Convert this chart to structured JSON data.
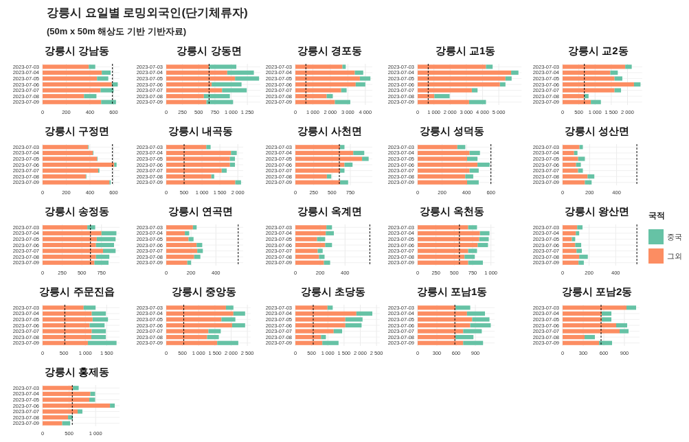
{
  "chart_data": [
    {
      "type": "other",
      "title": "강릉시 요일별 로밍외국인(단기체류자)",
      "subtitle": "(50m x 50m 해상도 기반 기반자료)"
    },
    {
      "type": "bar",
      "title": "강릉시 강남동",
      "orientation": "horizontal",
      "stacked": true,
      "grid": true,
      "categories": [
        "2023-07-03",
        "2023-07-04",
        "2023-07-05",
        "2023-07-06",
        "2023-07-07",
        "2023-07-08",
        "2023-07-09"
      ],
      "series": [
        {
          "color": "#fc8d62",
          "values": [
            390,
            500,
            460,
            585,
            490,
            350,
            495
          ]
        },
        {
          "color": "#66c2a5",
          "values": [
            55,
            75,
            95,
            50,
            110,
            105,
            125
          ]
        }
      ],
      "xlim": [
        0,
        650
      ],
      "xticks": [
        0,
        200,
        400,
        600
      ],
      "ref_lines": [
        {
          "axis": "x",
          "value": 590,
          "line_style": "dashed",
          "color": "#000000"
        }
      ]
    },
    {
      "type": "bar",
      "title": "강릉시 강동면",
      "orientation": "horizontal",
      "stacked": true,
      "grid": true,
      "categories": [
        "2023-07-03",
        "2023-07-04",
        "2023-07-05",
        "2023-07-06",
        "2023-07-07",
        "2023-07-08",
        "2023-07-09"
      ],
      "series": [
        {
          "color": "#fc8d62",
          "values": [
            660,
            940,
            1060,
            700,
            860,
            580,
            620
          ]
        },
        {
          "color": "#66c2a5",
          "values": [
            420,
            410,
            370,
            460,
            380,
            400,
            410
          ]
        }
      ],
      "xlim": [
        0,
        1450
      ],
      "xticks": [
        0,
        250,
        500,
        750,
        {
          "value": 1000,
          "label": "1 000"
        },
        {
          "value": 1250,
          "label": "1 250"
        }
      ],
      "ref_lines": [
        {
          "axis": "x",
          "value": 660,
          "line_style": "dashed",
          "color": "#000000"
        }
      ]
    },
    {
      "type": "bar",
      "title": "강릉시 경포동",
      "orientation": "horizontal",
      "stacked": true,
      "grid": true,
      "categories": [
        "2023-07-03",
        "2023-07-04",
        "2023-07-05",
        "2023-07-06",
        "2023-07-07",
        "2023-07-08",
        "2023-07-09"
      ],
      "series": [
        {
          "color": "#fc8d62",
          "values": [
            2690,
            3400,
            3690,
            3450,
            2620,
            1790,
            2260
          ]
        },
        {
          "color": "#66c2a5",
          "values": [
            190,
            480,
            600,
            550,
            310,
            350,
            880
          ]
        }
      ],
      "xlim": [
        0,
        4400
      ],
      "xticks": [
        0,
        {
          "value": 1000,
          "label": "1 000"
        },
        {
          "value": 2000,
          "label": "2 000"
        },
        {
          "value": 3000,
          "label": "3 000"
        },
        {
          "value": 4000,
          "label": "4 000"
        }
      ],
      "ref_lines": [
        {
          "axis": "x",
          "value": 600,
          "line_style": "dashed",
          "color": "#000000"
        }
      ]
    },
    {
      "type": "bar",
      "title": "강릉시 교1동",
      "orientation": "horizontal",
      "stacked": true,
      "grid": true,
      "categories": [
        "2023-07-03",
        "2023-07-04",
        "2023-07-05",
        "2023-07-06",
        "2023-07-07",
        "2023-07-08",
        "2023-07-09"
      ],
      "series": [
        {
          "color": "#fc8d62",
          "values": [
            4210,
            5760,
            5410,
            5070,
            3340,
            1030,
            3170
          ]
        },
        {
          "color": "#66c2a5",
          "values": [
            410,
            450,
            380,
            340,
            350,
            940,
            1040
          ]
        }
      ],
      "xlim": [
        0,
        6400
      ],
      "xticks": [
        0,
        {
          "value": 1000,
          "label": "1 000"
        },
        {
          "value": 2000,
          "label": "2 000"
        },
        {
          "value": 3000,
          "label": "3 000"
        },
        {
          "value": 4000,
          "label": "4 000"
        },
        {
          "value": 5000,
          "label": "5 000"
        }
      ],
      "ref_lines": [
        {
          "axis": "x",
          "value": 650,
          "line_style": "dashed",
          "color": "#000000"
        }
      ]
    },
    {
      "type": "bar",
      "title": "강릉시 교2동",
      "orientation": "horizontal",
      "stacked": true,
      "grid": true,
      "categories": [
        "2023-07-03",
        "2023-07-04",
        "2023-07-05",
        "2023-07-06",
        "2023-07-07",
        "2023-07-08",
        "2023-07-09"
      ],
      "series": [
        {
          "color": "#fc8d62",
          "values": [
            1930,
            1470,
            1600,
            2200,
            1600,
            670,
            870
          ]
        },
        {
          "color": "#66c2a5",
          "values": [
            200,
            230,
            240,
            200,
            200,
            130,
            310
          ]
        }
      ],
      "xlim": [
        0,
        2450
      ],
      "xticks": [
        0,
        500,
        {
          "value": 1000,
          "label": "1 000"
        },
        {
          "value": 1500,
          "label": "1 500"
        },
        {
          "value": 2000,
          "label": "2 000"
        }
      ],
      "ref_lines": [
        {
          "axis": "x",
          "value": 670,
          "line_style": "dashed",
          "color": "#000000"
        }
      ]
    },
    {
      "type": "bar",
      "title": "강릉시 구정면",
      "orientation": "horizontal",
      "stacked": true,
      "grid": true,
      "categories": [
        "2023-07-03",
        "2023-07-04",
        "2023-07-05",
        "2023-07-06",
        "2023-07-07",
        "2023-07-08",
        "2023-07-09"
      ],
      "series": [
        {
          "color": "#fc8d62",
          "values": [
            385,
            425,
            460,
            605,
            470,
            365,
            565
          ]
        },
        {
          "color": "#66c2a5",
          "values": [
            5,
            5,
            5,
            20,
            10,
            5,
            10
          ]
        }
      ],
      "xlim": [
        0,
        650
      ],
      "xticks": [
        0,
        200,
        400,
        600
      ],
      "ref_lines": [
        {
          "axis": "x",
          "value": 590,
          "line_style": "dashed",
          "color": "#000000"
        }
      ]
    },
    {
      "type": "bar",
      "title": "강릉시 내곡동",
      "orientation": "horizontal",
      "stacked": true,
      "grid": true,
      "categories": [
        "2023-07-03",
        "2023-07-04",
        "2023-07-05",
        "2023-07-06",
        "2023-07-07",
        "2023-07-08",
        "2023-07-09"
      ],
      "series": [
        {
          "color": "#fc8d62",
          "values": [
            1120,
            1810,
            1780,
            1780,
            1550,
            1260,
            1930
          ]
        },
        {
          "color": "#66c2a5",
          "values": [
            120,
            160,
            140,
            140,
            140,
            80,
            160
          ]
        }
      ],
      "xlim": [
        0,
        2150
      ],
      "xticks": [
        0,
        500,
        {
          "value": 1000,
          "label": "1 000"
        },
        {
          "value": 1500,
          "label": "1 500"
        },
        {
          "value": 2000,
          "label": "2 000"
        }
      ],
      "ref_lines": [
        {
          "axis": "x",
          "value": 500,
          "line_style": "dashed",
          "color": "#000000"
        }
      ]
    },
    {
      "type": "bar",
      "title": "강릉시 사천면",
      "orientation": "horizontal",
      "stacked": true,
      "grid": true,
      "categories": [
        "2023-07-03",
        "2023-07-04",
        "2023-07-05",
        "2023-07-06",
        "2023-07-07",
        "2023-07-08",
        "2023-07-09"
      ],
      "series": [
        {
          "color": "#fc8d62",
          "values": [
            610,
            790,
            910,
            670,
            610,
            430,
            610
          ]
        },
        {
          "color": "#66c2a5",
          "values": [
            60,
            150,
            90,
            110,
            60,
            60,
            110
          ]
        }
      ],
      "xlim": [
        0,
        1050
      ],
      "xticks": [
        0,
        250,
        500,
        750
      ],
      "ref_lines": [
        {
          "axis": "x",
          "value": 600,
          "line_style": "dashed",
          "color": "#000000"
        }
      ]
    },
    {
      "type": "bar",
      "title": "강릉시 성덕동",
      "orientation": "horizontal",
      "stacked": true,
      "grid": true,
      "categories": [
        "2023-07-03",
        "2023-07-04",
        "2023-07-05",
        "2023-07-06",
        "2023-07-07",
        "2023-07-08",
        "2023-07-09"
      ],
      "series": [
        {
          "color": "#fc8d62",
          "values": [
            325,
            425,
            405,
            490,
            425,
            390,
            405
          ]
        },
        {
          "color": "#66c2a5",
          "values": [
            65,
            85,
            85,
            100,
            75,
            65,
            95
          ]
        }
      ],
      "xlim": [
        0,
        630
      ],
      "xticks": [
        0,
        200,
        400,
        600
      ],
      "ref_lines": [
        {
          "axis": "x",
          "value": 600,
          "line_style": "dashed",
          "color": "#000000"
        }
      ]
    },
    {
      "type": "bar",
      "title": "강릉시 성산면",
      "orientation": "horizontal",
      "stacked": true,
      "grid": true,
      "categories": [
        "2023-07-03",
        "2023-07-04",
        "2023-07-05",
        "2023-07-06",
        "2023-07-07",
        "2023-07-08",
        "2023-07-09"
      ],
      "series": [
        {
          "color": "#fc8d62",
          "values": [
            125,
            85,
            115,
            100,
            115,
            185,
            165
          ]
        },
        {
          "color": "#66c2a5",
          "values": [
            25,
            25,
            50,
            35,
            35,
            50,
            50
          ]
        }
      ],
      "xlim": [
        0,
        570
      ],
      "xticks": [
        0,
        200,
        400
      ],
      "ref_lines": [
        {
          "axis": "x",
          "value": 550,
          "line_style": "dashed",
          "color": "#000000"
        }
      ]
    },
    {
      "type": "bar",
      "title": "강릉시 송정동",
      "orientation": "horizontal",
      "stacked": true,
      "grid": true,
      "categories": [
        "2023-07-03",
        "2023-07-04",
        "2023-07-05",
        "2023-07-06",
        "2023-07-07",
        "2023-07-08",
        "2023-07-09"
      ],
      "series": [
        {
          "color": "#fc8d62",
          "values": [
            570,
            750,
            690,
            680,
            770,
            680,
            660
          ]
        },
        {
          "color": "#66c2a5",
          "values": [
            100,
            190,
            240,
            230,
            160,
            170,
            180
          ]
        }
      ],
      "xlim": [
        0,
        980
      ],
      "xticks": [
        0,
        250,
        500,
        750
      ],
      "ref_lines": [
        {
          "axis": "x",
          "value": 610,
          "line_style": "dashed",
          "color": "#000000"
        }
      ]
    },
    {
      "type": "bar",
      "title": "강릉시 연곡면",
      "orientation": "horizontal",
      "stacked": true,
      "grid": true,
      "categories": [
        "2023-07-03",
        "2023-07-04",
        "2023-07-05",
        "2023-07-06",
        "2023-07-07",
        "2023-07-08",
        "2023-07-09"
      ],
      "series": [
        {
          "color": "#fc8d62",
          "values": [
            215,
            150,
            180,
            245,
            250,
            225,
            170
          ]
        },
        {
          "color": "#66c2a5",
          "values": [
            30,
            35,
            40,
            45,
            45,
            50,
            30
          ]
        }
      ],
      "xlim": [
        0,
        620
      ],
      "xticks": [
        0,
        200,
        400
      ],
      "ref_lines": [
        {
          "axis": "x",
          "value": 580,
          "line_style": "dashed",
          "color": "#000000"
        }
      ]
    },
    {
      "type": "bar",
      "title": "강릉시 옥계면",
      "orientation": "horizontal",
      "stacked": true,
      "grid": true,
      "categories": [
        "2023-07-03",
        "2023-07-04",
        "2023-07-05",
        "2023-07-06",
        "2023-07-07",
        "2023-07-08",
        "2023-07-09"
      ],
      "series": [
        {
          "color": "#fc8d62",
          "values": [
            250,
            245,
            175,
            240,
            180,
            190,
            230
          ]
        },
        {
          "color": "#66c2a5",
          "values": [
            45,
            65,
            65,
            55,
            40,
            45,
            50
          ]
        }
      ],
      "xlim": [
        0,
        620
      ],
      "xticks": [
        0,
        200,
        400
      ],
      "ref_lines": [
        {
          "axis": "x",
          "value": 600,
          "line_style": "dashed",
          "color": "#000000"
        }
      ]
    },
    {
      "type": "bar",
      "title": "강릉시 옥천동",
      "orientation": "horizontal",
      "stacked": true,
      "grid": true,
      "categories": [
        "2023-07-03",
        "2023-07-04",
        "2023-07-05",
        "2023-07-06",
        "2023-07-07",
        "2023-07-08",
        "2023-07-09"
      ],
      "series": [
        {
          "color": "#fc8d62",
          "values": [
            690,
            850,
            840,
            820,
            690,
            640,
            690
          ]
        },
        {
          "color": "#66c2a5",
          "values": [
            120,
            130,
            130,
            140,
            120,
            140,
            200
          ]
        }
      ],
      "xlim": [
        0,
        1050
      ],
      "xticks": [
        0,
        250,
        500,
        750,
        {
          "value": 1000,
          "label": "1 000"
        }
      ],
      "ref_lines": [
        {
          "axis": "x",
          "value": 570,
          "line_style": "dashed",
          "color": "#000000"
        }
      ]
    },
    {
      "type": "bar",
      "title": "강릉시 왕산면",
      "orientation": "horizontal",
      "stacked": true,
      "grid": true,
      "legend": "right",
      "legend_title": "국적",
      "categories": [
        "2023-07-03",
        "2023-07-04",
        "2023-07-05",
        "2023-07-06",
        "2023-07-07",
        "2023-07-08",
        "2023-07-09"
      ],
      "series": [
        {
          "name": "그외",
          "color": "#fc8d62",
          "values": [
            110,
            100,
            70,
            95,
            105,
            125,
            120
          ]
        },
        {
          "name": "중국",
          "color": "#66c2a5",
          "values": [
            40,
            25,
            25,
            45,
            40,
            65,
            40
          ]
        }
      ],
      "xlim": [
        0,
        580
      ],
      "xticks": [
        0,
        200,
        400
      ],
      "ref_lines": [
        {
          "axis": "x",
          "value": 560,
          "line_style": "dashed",
          "color": "#000000"
        }
      ]
    },
    {
      "type": "bar",
      "title": "강릉시 주문진읍",
      "orientation": "horizontal",
      "stacked": true,
      "grid": true,
      "categories": [
        "2023-07-03",
        "2023-07-04",
        "2023-07-05",
        "2023-07-06",
        "2023-07-07",
        "2023-07-08",
        "2023-07-09"
      ],
      "series": [
        {
          "color": "#fc8d62",
          "values": [
            960,
            1150,
            1170,
            1100,
            1150,
            1140,
            1060
          ]
        },
        {
          "color": "#66c2a5",
          "values": [
            280,
            330,
            360,
            350,
            330,
            340,
            670
          ]
        }
      ],
      "xlim": [
        0,
        1800
      ],
      "xticks": [
        0,
        500,
        {
          "value": 1000,
          "label": "1 000"
        },
        {
          "value": 1500,
          "label": "1 500"
        }
      ],
      "ref_lines": [
        {
          "axis": "x",
          "value": 520,
          "line_style": "dashed",
          "color": "#000000"
        }
      ]
    },
    {
      "type": "bar",
      "title": "강릉시 중앙동",
      "orientation": "horizontal",
      "stacked": true,
      "grid": true,
      "categories": [
        "2023-07-03",
        "2023-07-04",
        "2023-07-05",
        "2023-07-06",
        "2023-07-07",
        "2023-07-08",
        "2023-07-09"
      ],
      "series": [
        {
          "color": "#fc8d62",
          "values": [
            1840,
            2070,
            1700,
            2030,
            1300,
            1260,
            1570
          ]
        },
        {
          "color": "#66c2a5",
          "values": [
            230,
            360,
            430,
            400,
            380,
            360,
            650
          ]
        }
      ],
      "xlim": [
        0,
        2600
      ],
      "xticks": [
        0,
        500,
        {
          "value": 1000,
          "label": "1 000"
        },
        {
          "value": 1500,
          "label": "1 500"
        },
        {
          "value": 2000,
          "label": "2 000"
        },
        {
          "value": 2500,
          "label": "2 500"
        }
      ],
      "ref_lines": [
        {
          "axis": "x",
          "value": 540,
          "line_style": "dashed",
          "color": "#000000"
        }
      ]
    },
    {
      "type": "bar",
      "title": "강릉시 초당동",
      "orientation": "horizontal",
      "stacked": true,
      "grid": true,
      "categories": [
        "2023-07-03",
        "2023-07-04",
        "2023-07-05",
        "2023-07-06",
        "2023-07-07",
        "2023-07-08",
        "2023-07-09"
      ],
      "series": [
        {
          "color": "#fc8d62",
          "values": [
            990,
            1880,
            1540,
            1540,
            1180,
            790,
            830
          ]
        },
        {
          "color": "#66c2a5",
          "values": [
            160,
            490,
            530,
            500,
            260,
            150,
            500
          ]
        }
      ],
      "xlim": [
        0,
        2600
      ],
      "xticks": [
        0,
        500,
        {
          "value": 1000,
          "label": "1 000"
        },
        {
          "value": 1500,
          "label": "1 500"
        },
        {
          "value": 2000,
          "label": "2 000"
        },
        {
          "value": 2500,
          "label": "2 500"
        }
      ],
      "ref_lines": [
        {
          "axis": "x",
          "value": 550,
          "line_style": "dashed",
          "color": "#000000"
        }
      ]
    },
    {
      "type": "bar",
      "title": "강릉시 포남1동",
      "orientation": "horizontal",
      "stacked": true,
      "grid": true,
      "categories": [
        "2023-07-03",
        "2023-07-04",
        "2023-07-05",
        "2023-07-06",
        "2023-07-07",
        "2023-07-08",
        "2023-07-09"
      ],
      "series": [
        {
          "color": "#fc8d62",
          "values": [
            590,
            770,
            850,
            820,
            710,
            590,
            710
          ]
        },
        {
          "color": "#66c2a5",
          "values": [
            230,
            280,
            270,
            320,
            290,
            280,
            310
          ]
        }
      ],
      "xlim": [
        0,
        1200
      ],
      "xticks": [
        0,
        300,
        600,
        900
      ],
      "ref_lines": [
        {
          "axis": "x",
          "value": 580,
          "line_style": "dashed",
          "color": "#000000"
        }
      ]
    },
    {
      "type": "bar",
      "title": "강릉시 포남2동",
      "orientation": "horizontal",
      "stacked": true,
      "grid": true,
      "categories": [
        "2023-07-03",
        "2023-07-04",
        "2023-07-05",
        "2023-07-06",
        "2023-07-07",
        "2023-07-08",
        "2023-07-09"
      ],
      "series": [
        {
          "color": "#fc8d62",
          "values": [
            930,
            570,
            570,
            780,
            830,
            320,
            530
          ]
        },
        {
          "color": "#66c2a5",
          "values": [
            140,
            140,
            140,
            160,
            130,
            150,
            190
          ]
        }
      ],
      "xlim": [
        0,
        1120
      ],
      "xticks": [
        0,
        300,
        600,
        900
      ],
      "ref_lines": [
        {
          "axis": "x",
          "value": 560,
          "line_style": "dashed",
          "color": "#000000"
        }
      ]
    },
    {
      "type": "bar",
      "title": "강릉시 홍제동",
      "orientation": "horizontal",
      "stacked": true,
      "grid": true,
      "categories": [
        "2023-07-03",
        "2023-07-04",
        "2023-07-05",
        "2023-07-06",
        "2023-07-07",
        "2023-07-08",
        "2023-07-09"
      ],
      "series": [
        {
          "color": "#fc8d62",
          "values": [
            570,
            900,
            880,
            1270,
            660,
            480,
            370
          ]
        },
        {
          "color": "#66c2a5",
          "values": [
            110,
            90,
            110,
            90,
            90,
            90,
            150
          ]
        }
      ],
      "xlim": [
        0,
        1450
      ],
      "xticks": [
        0,
        500,
        {
          "value": 1000,
          "label": "1 000"
        }
      ],
      "ref_lines": [
        {
          "axis": "x",
          "value": 560,
          "line_style": "dashed",
          "color": "#000000"
        }
      ]
    }
  ]
}
